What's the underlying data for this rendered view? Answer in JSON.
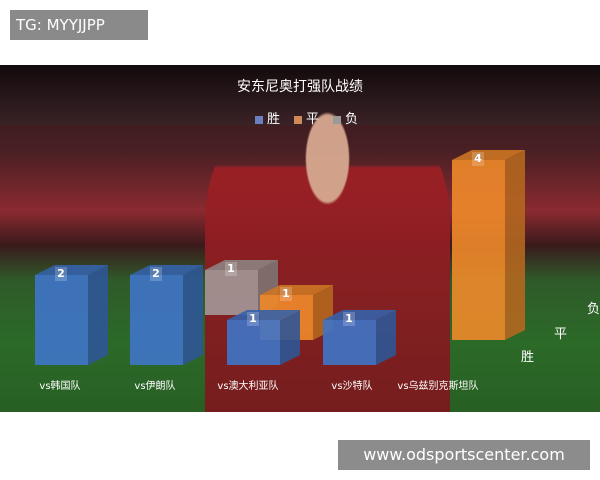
{
  "tag_text": "TG: MYYJJPP",
  "watermark": "www.odsportscenter.com",
  "chart_data": {
    "type": "bar",
    "title": "安东尼奥打强队战绩",
    "categories": [
      "vs韩国队",
      "vs伊朗队",
      "vs澳大利亚队",
      "vs沙特队",
      "vs乌兹别克斯坦队"
    ],
    "series": [
      {
        "name": "胜",
        "color": "#3f74c8",
        "values": [
          2,
          2,
          1,
          1,
          0
        ]
      },
      {
        "name": "平",
        "color": "#f08a2a",
        "values": [
          0,
          0,
          1,
          0,
          4
        ]
      },
      {
        "name": "负",
        "color": "#a8a8a8",
        "values": [
          0,
          0,
          1,
          0,
          0
        ]
      }
    ],
    "depth_axis_labels": [
      "胜",
      "平",
      "负"
    ],
    "legend": "top"
  }
}
